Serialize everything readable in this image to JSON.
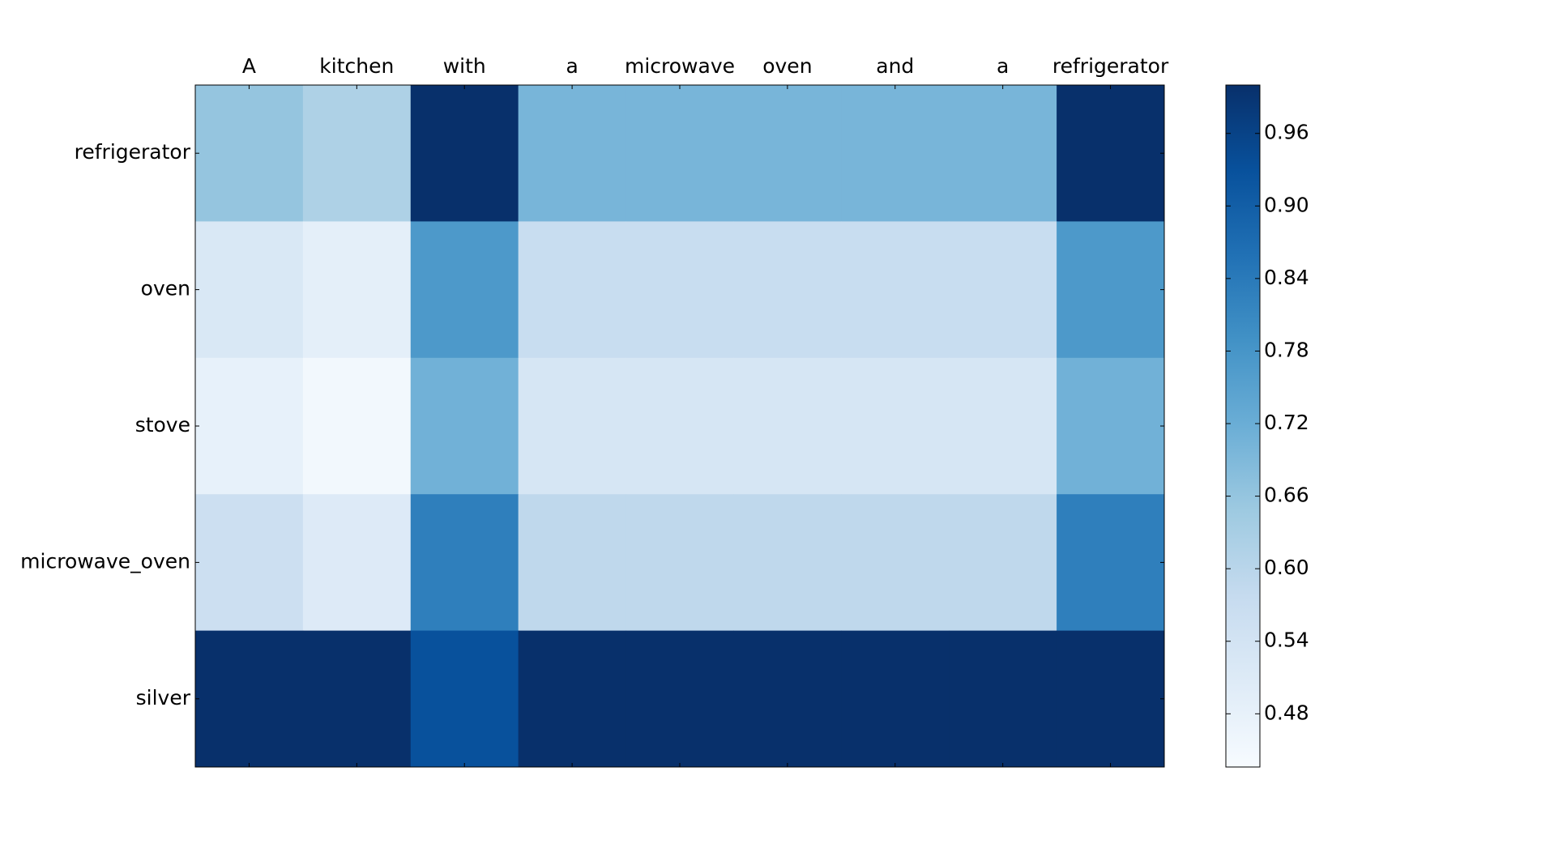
{
  "chart_data": {
    "type": "heatmap",
    "cmap": "Blues",
    "x": [
      "A",
      "kitchen",
      "with",
      "a",
      "microwave",
      "oven",
      "and",
      "a",
      "refrigerator"
    ],
    "y": [
      "refrigerator",
      "oven",
      "stove",
      "microwave_oven",
      "silver"
    ],
    "values": [
      [
        0.66,
        0.62,
        1.0,
        0.7,
        0.7,
        0.7,
        0.7,
        0.7,
        1.0
      ],
      [
        0.52,
        0.49,
        0.77,
        0.57,
        0.57,
        0.57,
        0.57,
        0.57,
        0.77
      ],
      [
        0.48,
        0.45,
        0.71,
        0.53,
        0.53,
        0.53,
        0.53,
        0.53,
        0.71
      ],
      [
        0.56,
        0.51,
        0.83,
        0.59,
        0.59,
        0.59,
        0.59,
        0.59,
        0.83
      ],
      [
        1.0,
        1.0,
        0.93,
        1.0,
        1.0,
        1.0,
        1.0,
        1.0,
        1.0
      ]
    ],
    "zlim": [
      0.436,
      1.0
    ],
    "zticks": [
      0.48,
      0.54,
      {
        "value": 0.6,
        "label": "0.60"
      },
      0.66,
      0.72,
      0.78,
      0.84,
      {
        "value": 0.9,
        "label": "0.90"
      },
      0.96
    ]
  }
}
